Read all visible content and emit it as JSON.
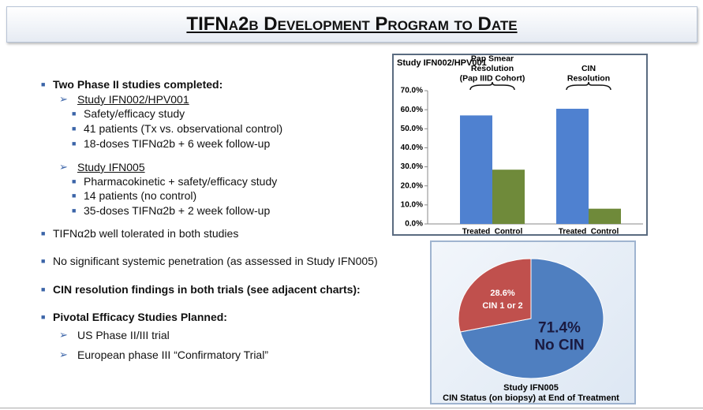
{
  "title": "TIFNα2b Development Program to Date",
  "bullets": [
    {
      "text": "Two Phase II studies completed:",
      "subs": [
        {
          "text": "Study IFN002/HPV001",
          "items": [
            "Safety/efficacy study",
            "41 patients (Tx vs. observational control)",
            "18-doses TIFNα2b + 6 week follow-up"
          ]
        },
        {
          "text": "Study IFN005",
          "items": [
            "Pharmacokinetic + safety/efficacy study",
            "14 patients (no control)",
            "35-doses TIFNα2b + 2 week follow-up"
          ]
        }
      ]
    },
    {
      "text": "TIFNα2b well tolerated in both studies"
    },
    {
      "text": "No significant systemic penetration (as assessed in Study IFN005)"
    },
    {
      "text": "CIN resolution findings in both trials (see adjacent charts):"
    },
    {
      "text": "Pivotal Efficacy Studies Planned:",
      "subs": [
        {
          "text": "US Phase II/III trial"
        },
        {
          "text": "European phase III “Confirmatory Trial”"
        }
      ]
    }
  ],
  "chart_data": [
    {
      "type": "bar",
      "title": "Study IFN002/HPV001",
      "categories": [
        "Treated",
        "Control",
        "Treated",
        "Control"
      ],
      "group_labels": [
        [
          "Pap Smear",
          "Resolution",
          "(Pap IIID Cohort)"
        ],
        [
          "CIN",
          "Resolution"
        ]
      ],
      "values": [
        57,
        28.5,
        60.5,
        8
      ],
      "colors": [
        "#4f81d0",
        "#6f8a3a",
        "#4f81d0",
        "#6f8a3a"
      ],
      "ylim": [
        0,
        70
      ],
      "yticks": [
        {
          "value": 0,
          "label": "0.0%"
        },
        {
          "value": 10,
          "label": "10.0%"
        },
        {
          "value": 20,
          "label": "20.0%"
        },
        {
          "value": 30,
          "label": "30.0%"
        },
        {
          "value": 40,
          "label": "40.0%"
        },
        {
          "value": 50,
          "label": "50.0%"
        },
        {
          "value": 60,
          "label": "60.0%"
        },
        {
          "value": 70,
          "label": "70.0%"
        }
      ]
    },
    {
      "type": "pie",
      "title": "Study IFN005",
      "subtitle": "CIN Status (on biopsy) at End of Treatment",
      "categories": [
        "No CIN",
        "CIN 1 or 2"
      ],
      "values": [
        71.4,
        28.6
      ],
      "value_labels": [
        "71.4%",
        "28.6%"
      ],
      "colors": [
        "#4f7fc0",
        "#c0504d"
      ]
    }
  ]
}
